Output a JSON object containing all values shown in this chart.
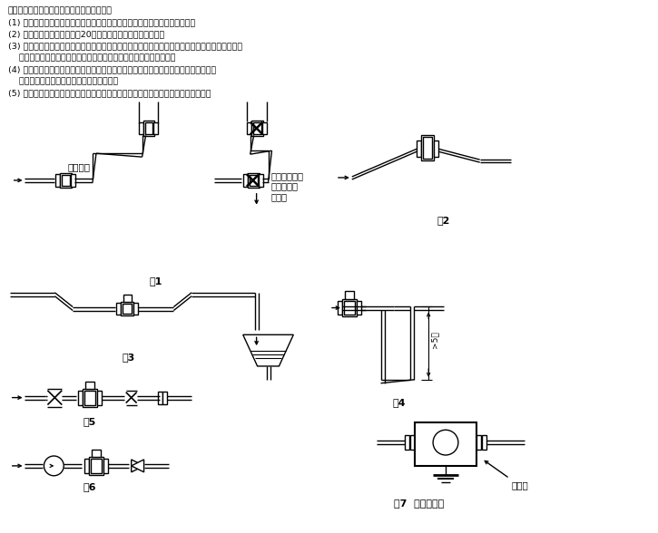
{
  "bg_color": "#ffffff",
  "text_color": "#000000",
  "instructions": [
    "流量计安装后，一般经以下步骤可正式使用。",
    "(1) 安装检查：检查管线安装是否正确，各连线是否正确可靠，特别是接地线。",
    "(2) 通电预热：通电后，预热20分钟，仪表一般就能正常测量。",
    "(3) 零点跟踪：为保证精度，需要进行零点跟踪。电磁流量计的测量管充满液体并确定液体静止后，",
    "    就可以进行零点校准，然后保存（确认）。根据现场具体情况来定。",
    "(4) 参数设定：用户根据使用需要，可做必要的参数设定。但随意改动各种出厂设定值，",
    "    有可能造成仪表测量误差或不能正常工作。",
    "(5) 根据介质粘附程度，应定期清理流量计内壁和电极，并注意勿使衬里与电极受损。"
  ],
  "fig_labels": [
    "图1",
    "图2",
    "图3",
    "图4",
    "图5",
    "图6",
    "图7  接地示意图"
  ],
  "label_correct": "正确安装",
  "label_wrong": "容易产生介质\n非满管一错\n误安装",
  "label_transmitter": "变送器"
}
